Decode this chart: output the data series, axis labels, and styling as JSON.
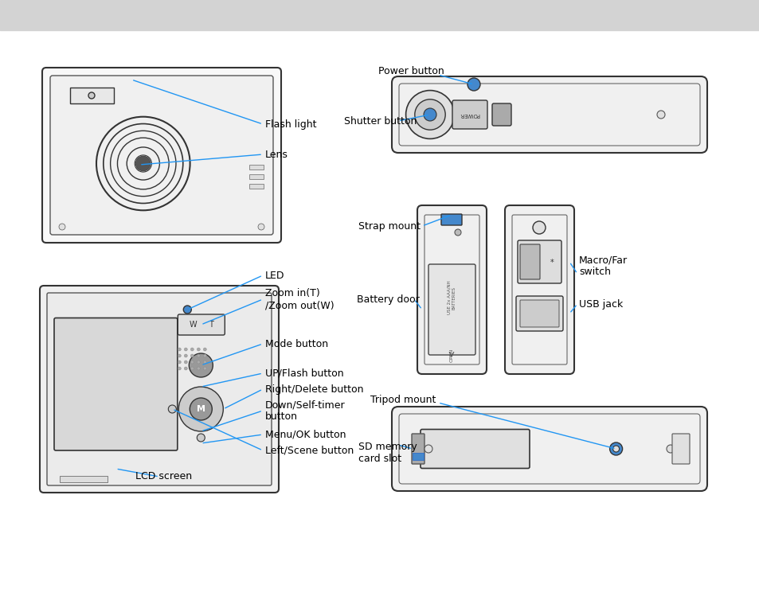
{
  "bg_color": "#ffffff",
  "header_color": "#d3d3d3",
  "label_color": "#000000",
  "line_color": "#2196f3",
  "font_size": 9,
  "labels": {
    "flash_light": "Flash light",
    "lens": "Lens",
    "led": "LED",
    "zoom": "Zoom in(T)\n/Zoom out(W)",
    "mode_button": "Mode button",
    "up_flash": "UP/Flash button",
    "right_delete": "Right/Delete button",
    "down_self": "Down/Self-timer\nbutton",
    "menu_ok": "Menu/OK button",
    "left_scene": "Left/Scene button",
    "lcd_screen": "LCD screen",
    "power_button": "Power button",
    "shutter_button": "Shutter button",
    "strap_mount": "Strap mount",
    "battery_door": "Battery door",
    "macro_far": "Macro/Far\nswitch",
    "usb_jack": "USB jack",
    "tripod_mount": "Tripod mount",
    "sd_memory": "SD memory\ncard slot"
  }
}
